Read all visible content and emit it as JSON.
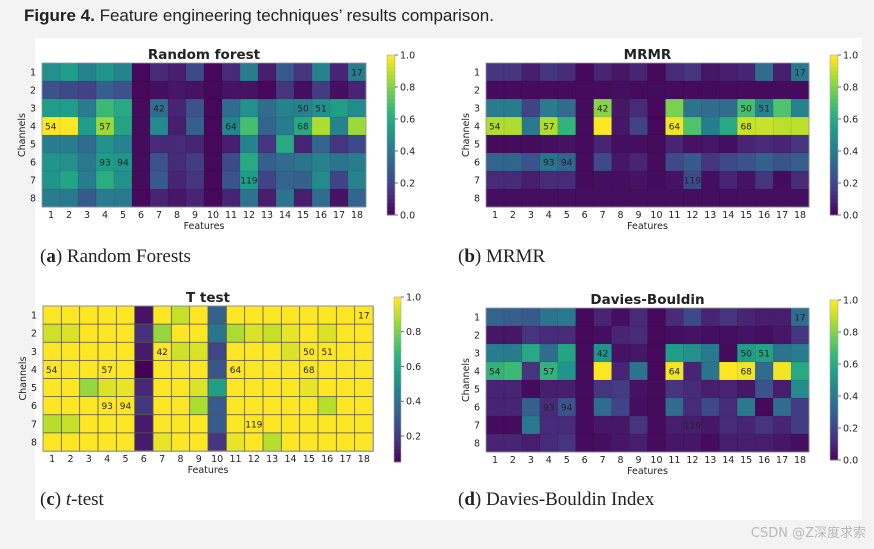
{
  "figure": {
    "label": "Figure 4.",
    "title": " Feature engineering techniques’ results comparison."
  },
  "captions": [
    {
      "letter": "a",
      "text": " Random Forests",
      "italic": ""
    },
    {
      "letter": "b",
      "text": " MRMR",
      "italic": ""
    },
    {
      "letter": "c",
      "text": "-test",
      "italic": "t"
    },
    {
      "letter": "d",
      "text": " Davies-Bouldin Index",
      "italic": ""
    }
  ],
  "watermark": "CSDN @Z深度求索",
  "chart_data": [
    {
      "type": "heatmap",
      "title": "Random forest",
      "xlabel": "Features",
      "ylabel": "Channels",
      "x_ticks": [
        "1",
        "2",
        "3",
        "4",
        "5",
        "6",
        "7",
        "8",
        "9",
        "10",
        "11",
        "12",
        "13",
        "14",
        "15",
        "16",
        "17",
        "18"
      ],
      "y_ticks": [
        "1",
        "2",
        "3",
        "4",
        "5",
        "6",
        "7",
        "8"
      ],
      "colormap": "viridis",
      "vmin": 0.0,
      "vmax": 1.0,
      "colorbar_ticks": [
        "0.0",
        "0.2",
        "0.4",
        "0.6",
        "0.8",
        "1.0"
      ],
      "annotations": [
        {
          "row": 1,
          "col": 18,
          "text": "17"
        },
        {
          "row": 3,
          "col": 7,
          "text": "42"
        },
        {
          "row": 3,
          "col": 15,
          "text": "50"
        },
        {
          "row": 3,
          "col": 16,
          "text": "51"
        },
        {
          "row": 4,
          "col": 1,
          "text": "54"
        },
        {
          "row": 4,
          "col": 4,
          "text": "57"
        },
        {
          "row": 4,
          "col": 11,
          "text": "64"
        },
        {
          "row": 4,
          "col": 15,
          "text": "68"
        },
        {
          "row": 6,
          "col": 4,
          "text": "93"
        },
        {
          "row": 6,
          "col": 5,
          "text": "94"
        },
        {
          "row": 7,
          "col": 12,
          "text": "119"
        }
      ],
      "values": [
        [
          0.5,
          0.55,
          0.45,
          0.52,
          0.45,
          0.02,
          0.12,
          0.08,
          0.22,
          0.02,
          0.12,
          0.42,
          0.08,
          0.28,
          0.15,
          0.45,
          0.1,
          0.42
        ],
        [
          0.25,
          0.22,
          0.2,
          0.3,
          0.25,
          0.02,
          0.04,
          0.06,
          0.05,
          0.02,
          0.05,
          0.05,
          0.02,
          0.15,
          0.04,
          0.18,
          0.04,
          0.1
        ],
        [
          0.55,
          0.55,
          0.42,
          0.68,
          0.6,
          0.03,
          0.35,
          0.1,
          0.25,
          0.02,
          0.35,
          0.5,
          0.35,
          0.45,
          0.45,
          0.5,
          0.55,
          0.48
        ],
        [
          1.0,
          1.0,
          0.55,
          0.85,
          0.58,
          0.03,
          0.48,
          0.08,
          0.3,
          0.02,
          0.45,
          0.7,
          0.32,
          0.42,
          0.6,
          0.88,
          0.45,
          0.85
        ],
        [
          0.42,
          0.42,
          0.35,
          0.5,
          0.45,
          0.03,
          0.12,
          0.12,
          0.1,
          0.02,
          0.08,
          0.45,
          0.15,
          0.6,
          0.1,
          0.32,
          0.15,
          0.22
        ],
        [
          0.52,
          0.5,
          0.4,
          0.55,
          0.52,
          0.03,
          0.25,
          0.12,
          0.18,
          0.02,
          0.22,
          0.6,
          0.3,
          0.35,
          0.38,
          0.45,
          0.38,
          0.42
        ],
        [
          0.52,
          0.58,
          0.42,
          0.62,
          0.5,
          0.03,
          0.28,
          0.1,
          0.15,
          0.02,
          0.25,
          0.55,
          0.2,
          0.32,
          0.3,
          0.48,
          0.2,
          0.45
        ],
        [
          0.42,
          0.4,
          0.28,
          0.42,
          0.4,
          0.02,
          0.1,
          0.06,
          0.1,
          0.02,
          0.1,
          0.38,
          0.08,
          0.38,
          0.08,
          0.35,
          0.05,
          0.32
        ]
      ]
    },
    {
      "type": "heatmap",
      "title": "MRMR",
      "xlabel": "Features",
      "ylabel": "Channels",
      "x_ticks": [
        "1",
        "2",
        "3",
        "4",
        "5",
        "6",
        "7",
        "8",
        "9",
        "10",
        "11",
        "12",
        "13",
        "14",
        "15",
        "16",
        "17",
        "18"
      ],
      "y_ticks": [
        "1",
        "2",
        "3",
        "4",
        "5",
        "6",
        "7",
        "8"
      ],
      "colormap": "viridis",
      "vmin": 0.0,
      "vmax": 1.0,
      "colorbar_ticks": [
        "0.0",
        "0.2",
        "0.4",
        "0.6",
        "0.8",
        "1.0"
      ],
      "annotations": [
        {
          "row": 1,
          "col": 18,
          "text": "17"
        },
        {
          "row": 3,
          "col": 7,
          "text": "42"
        },
        {
          "row": 3,
          "col": 15,
          "text": "50"
        },
        {
          "row": 3,
          "col": 16,
          "text": "51"
        },
        {
          "row": 4,
          "col": 1,
          "text": "54"
        },
        {
          "row": 4,
          "col": 4,
          "text": "57"
        },
        {
          "row": 4,
          "col": 11,
          "text": "64"
        },
        {
          "row": 4,
          "col": 15,
          "text": "68"
        },
        {
          "row": 6,
          "col": 4,
          "text": "93"
        },
        {
          "row": 6,
          "col": 5,
          "text": "94"
        },
        {
          "row": 7,
          "col": 12,
          "text": "119"
        }
      ],
      "values": [
        [
          0.15,
          0.15,
          0.08,
          0.15,
          0.12,
          0.02,
          0.1,
          0.06,
          0.1,
          0.02,
          0.12,
          0.15,
          0.06,
          0.08,
          0.1,
          0.35,
          0.08,
          0.4
        ],
        [
          0.03,
          0.03,
          0.03,
          0.03,
          0.03,
          0.03,
          0.03,
          0.04,
          0.03,
          0.03,
          0.03,
          0.03,
          0.03,
          0.03,
          0.03,
          0.03,
          0.03,
          0.03
        ],
        [
          0.42,
          0.42,
          0.2,
          0.42,
          0.35,
          0.03,
          0.82,
          0.06,
          0.12,
          0.02,
          0.8,
          0.38,
          0.35,
          0.35,
          0.7,
          0.45,
          0.72,
          0.45
        ],
        [
          0.88,
          0.88,
          0.4,
          0.88,
          0.65,
          0.03,
          1.0,
          0.06,
          0.2,
          0.02,
          0.98,
          0.72,
          0.42,
          0.6,
          0.92,
          0.92,
          0.9,
          0.9
        ],
        [
          0.03,
          0.03,
          0.03,
          0.04,
          0.05,
          0.03,
          0.1,
          0.04,
          0.04,
          0.03,
          0.1,
          0.05,
          0.06,
          0.04,
          0.1,
          0.12,
          0.1,
          0.15
        ],
        [
          0.32,
          0.32,
          0.25,
          0.38,
          0.32,
          0.03,
          0.22,
          0.06,
          0.1,
          0.03,
          0.22,
          0.28,
          0.15,
          0.22,
          0.25,
          0.3,
          0.25,
          0.3
        ],
        [
          0.12,
          0.12,
          0.08,
          0.12,
          0.12,
          0.03,
          0.04,
          0.04,
          0.05,
          0.03,
          0.05,
          0.22,
          0.04,
          0.1,
          0.05,
          0.15,
          0.03,
          0.12
        ],
        [
          0.04,
          0.04,
          0.04,
          0.04,
          0.04,
          0.04,
          0.04,
          0.04,
          0.04,
          0.04,
          0.04,
          0.04,
          0.04,
          0.04,
          0.04,
          0.04,
          0.04,
          0.04
        ]
      ]
    },
    {
      "type": "heatmap",
      "title": "T test",
      "xlabel": "Features",
      "ylabel": "Channels",
      "x_ticks": [
        "1",
        "2",
        "3",
        "4",
        "5",
        "6",
        "7",
        "8",
        "9",
        "10",
        "11",
        "12",
        "13",
        "14",
        "15",
        "16",
        "17",
        "18"
      ],
      "y_ticks": [
        "1",
        "2",
        "3",
        "4",
        "5",
        "6",
        "7",
        "8"
      ],
      "colormap": "viridis",
      "vmin": 0.05,
      "vmax": 1.0,
      "colorbar_ticks": [
        "0.2",
        "0.4",
        "0.6",
        "0.8",
        "1.0"
      ],
      "annotations": [
        {
          "row": 1,
          "col": 18,
          "text": "17"
        },
        {
          "row": 3,
          "col": 7,
          "text": "42"
        },
        {
          "row": 3,
          "col": 15,
          "text": "50"
        },
        {
          "row": 3,
          "col": 16,
          "text": "51"
        },
        {
          "row": 4,
          "col": 1,
          "text": "54"
        },
        {
          "row": 4,
          "col": 4,
          "text": "57"
        },
        {
          "row": 4,
          "col": 11,
          "text": "64"
        },
        {
          "row": 4,
          "col": 15,
          "text": "68"
        },
        {
          "row": 6,
          "col": 4,
          "text": "93"
        },
        {
          "row": 6,
          "col": 5,
          "text": "94"
        },
        {
          "row": 7,
          "col": 12,
          "text": "119"
        }
      ],
      "values": [
        [
          1,
          1,
          1,
          1,
          1,
          0.1,
          1,
          0.92,
          1,
          0.35,
          1,
          1,
          1,
          1,
          1,
          1,
          1,
          1
        ],
        [
          0.93,
          0.95,
          1,
          1,
          1,
          0.18,
          0.85,
          1,
          1,
          0.42,
          0.88,
          0.95,
          0.92,
          0.97,
          1,
          0.95,
          1,
          1
        ],
        [
          1,
          1,
          1,
          1,
          1,
          0.12,
          1,
          0.93,
          0.95,
          0.25,
          1,
          1,
          1,
          0.95,
          1,
          1,
          1,
          1
        ],
        [
          1,
          1,
          1,
          1,
          1,
          0.05,
          1,
          1,
          1,
          0.3,
          1,
          1,
          1,
          1,
          1,
          1,
          1,
          1
        ],
        [
          1,
          1,
          0.85,
          0.95,
          0.97,
          0.15,
          1,
          1,
          0.95,
          0.58,
          1,
          1,
          1,
          1,
          0.97,
          1,
          1,
          1
        ],
        [
          1,
          1,
          1,
          1,
          1,
          0.2,
          1,
          1,
          0.88,
          0.32,
          1,
          1,
          1,
          1,
          1,
          0.9,
          1,
          1
        ],
        [
          0.9,
          0.92,
          1,
          1,
          1,
          0.12,
          1,
          1,
          1,
          0.32,
          1,
          1,
          1,
          1,
          1,
          1,
          1,
          1
        ],
        [
          1,
          1,
          1,
          1,
          1,
          0.12,
          0.97,
          1,
          1,
          0.2,
          0.97,
          1,
          0.9,
          1,
          1,
          1,
          1,
          1
        ]
      ]
    },
    {
      "type": "heatmap",
      "title": "Davies-Bouldin",
      "xlabel": "Features",
      "ylabel": "Channels",
      "x_ticks": [
        "1",
        "2",
        "3",
        "4",
        "5",
        "6",
        "7",
        "8",
        "9",
        "10",
        "11",
        "12",
        "13",
        "14",
        "15",
        "16",
        "17",
        "18"
      ],
      "y_ticks": [
        "1",
        "2",
        "3",
        "4",
        "5",
        "6",
        "7",
        "8"
      ],
      "colormap": "viridis",
      "vmin": 0.0,
      "vmax": 1.0,
      "colorbar_ticks": [
        "0.0",
        "0.2",
        "0.4",
        "0.6",
        "0.8",
        "1.0"
      ],
      "annotations": [
        {
          "row": 1,
          "col": 18,
          "text": "17"
        },
        {
          "row": 3,
          "col": 7,
          "text": "42"
        },
        {
          "row": 3,
          "col": 15,
          "text": "50"
        },
        {
          "row": 3,
          "col": 16,
          "text": "51"
        },
        {
          "row": 4,
          "col": 1,
          "text": "54"
        },
        {
          "row": 4,
          "col": 4,
          "text": "57"
        },
        {
          "row": 4,
          "col": 11,
          "text": "64"
        },
        {
          "row": 4,
          "col": 15,
          "text": "68"
        },
        {
          "row": 6,
          "col": 4,
          "text": "93"
        },
        {
          "row": 6,
          "col": 5,
          "text": "94"
        },
        {
          "row": 7,
          "col": 12,
          "text": "119"
        }
      ],
      "values": [
        [
          0.32,
          0.3,
          0.28,
          0.38,
          0.4,
          0.02,
          0.1,
          0.04,
          0.12,
          0.02,
          0.12,
          0.22,
          0.1,
          0.15,
          0.1,
          0.08,
          0.08,
          0.35
        ],
        [
          0.06,
          0.06,
          0.15,
          0.12,
          0.12,
          0.02,
          0.04,
          0.1,
          0.12,
          0.02,
          0.04,
          0.05,
          0.04,
          0.04,
          0.05,
          0.04,
          0.06,
          0.15
        ],
        [
          0.42,
          0.42,
          0.6,
          0.35,
          0.58,
          0.03,
          0.52,
          0.05,
          0.06,
          0.02,
          0.55,
          0.5,
          0.4,
          0.03,
          0.55,
          0.58,
          0.38,
          0.42
        ],
        [
          0.65,
          0.68,
          0.15,
          0.65,
          0.52,
          0.03,
          1.0,
          0.1,
          0.38,
          0.02,
          0.98,
          0.1,
          0.38,
          1.0,
          0.98,
          0.35,
          0.98,
          0.6
        ],
        [
          0.1,
          0.1,
          0.03,
          0.08,
          0.08,
          0.03,
          0.15,
          0.18,
          0.05,
          0.03,
          0.15,
          0.12,
          0.08,
          0.1,
          0.06,
          0.25,
          0.08,
          0.48
        ],
        [
          0.1,
          0.1,
          0.3,
          0.12,
          0.25,
          0.03,
          0.35,
          0.2,
          0.04,
          0.03,
          0.35,
          0.12,
          0.22,
          0.12,
          0.4,
          0.02,
          0.35,
          0.18
        ],
        [
          0.03,
          0.03,
          0.4,
          0.12,
          0.12,
          0.03,
          0.06,
          0.06,
          0.15,
          0.03,
          0.08,
          0.08,
          0.06,
          0.12,
          0.1,
          0.15,
          0.1,
          0.18
        ],
        [
          0.1,
          0.1,
          0.08,
          0.12,
          0.15,
          0.03,
          0.04,
          0.06,
          0.08,
          0.03,
          0.06,
          0.06,
          0.03,
          0.08,
          0.08,
          0.08,
          0.06,
          0.04
        ]
      ]
    }
  ]
}
